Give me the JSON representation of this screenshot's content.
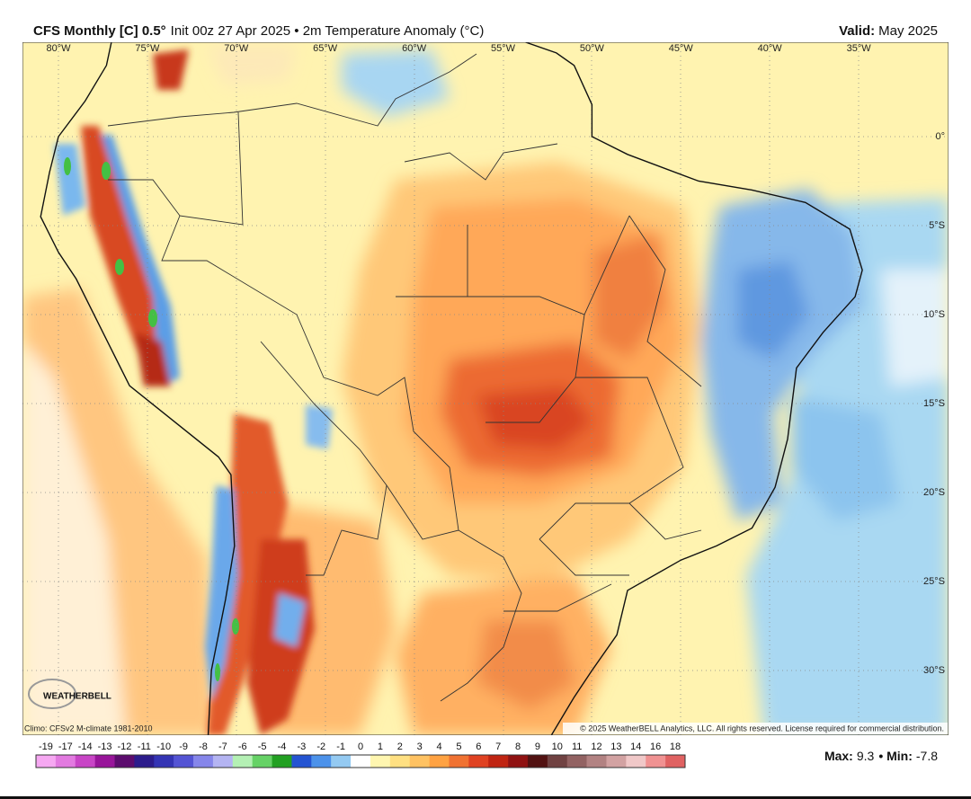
{
  "header": {
    "model": "CFS Monthly [C] 0.5°",
    "init": "Init 00z 27 Apr 2025 • 2m Temperature Anomaly (°C)",
    "valid_label": "Valid:",
    "valid": "May 2025"
  },
  "map": {
    "lon_labels": [
      "80°W",
      "75°W",
      "70°W",
      "65°W",
      "60°W",
      "55°W",
      "50°W",
      "45°W",
      "40°W",
      "35°W"
    ],
    "lat_labels": [
      "0°",
      "5°S",
      "10°S",
      "15°S",
      "20°S",
      "25°S",
      "30°S"
    ],
    "climo": "Climo: CFSv2 M-climate 1981-2010",
    "copyright": "© 2025 WeatherBELL Analytics, LLC. All rights reserved. License required for commercial distribution.",
    "logo": "WEATHERBELL"
  },
  "colorbar": {
    "labels": [
      -19,
      -17,
      -14,
      -13,
      -12,
      -11,
      -10,
      -9,
      -8,
      -7,
      -6,
      -5,
      -4,
      -3,
      -2,
      -1,
      0,
      1,
      2,
      3,
      4,
      5,
      6,
      7,
      8,
      9,
      10,
      11,
      12,
      13,
      14,
      16,
      18
    ],
    "colors": [
      "#f6a8f2",
      "#e27ae0",
      "#c845c6",
      "#98159a",
      "#5c0c6e",
      "#2c1c8c",
      "#3434b4",
      "#5454d4",
      "#8686ea",
      "#b4b4f2",
      "#b4f0b4",
      "#66d266",
      "#22a022",
      "#2454d2",
      "#4c92ea",
      "#94caf2",
      "#ffffff",
      "#fff6b0",
      "#ffe082",
      "#ffc262",
      "#ffa242",
      "#f07232",
      "#e04222",
      "#c02412",
      "#901212",
      "#521212",
      "#704242",
      "#926262",
      "#b28282",
      "#d2a2a2",
      "#f0c8c8",
      "#f09292",
      "#e06262"
    ]
  },
  "stats": {
    "max_label": "Max:",
    "max": 9.3,
    "min_label": "• Min:",
    "min": -7.8
  }
}
